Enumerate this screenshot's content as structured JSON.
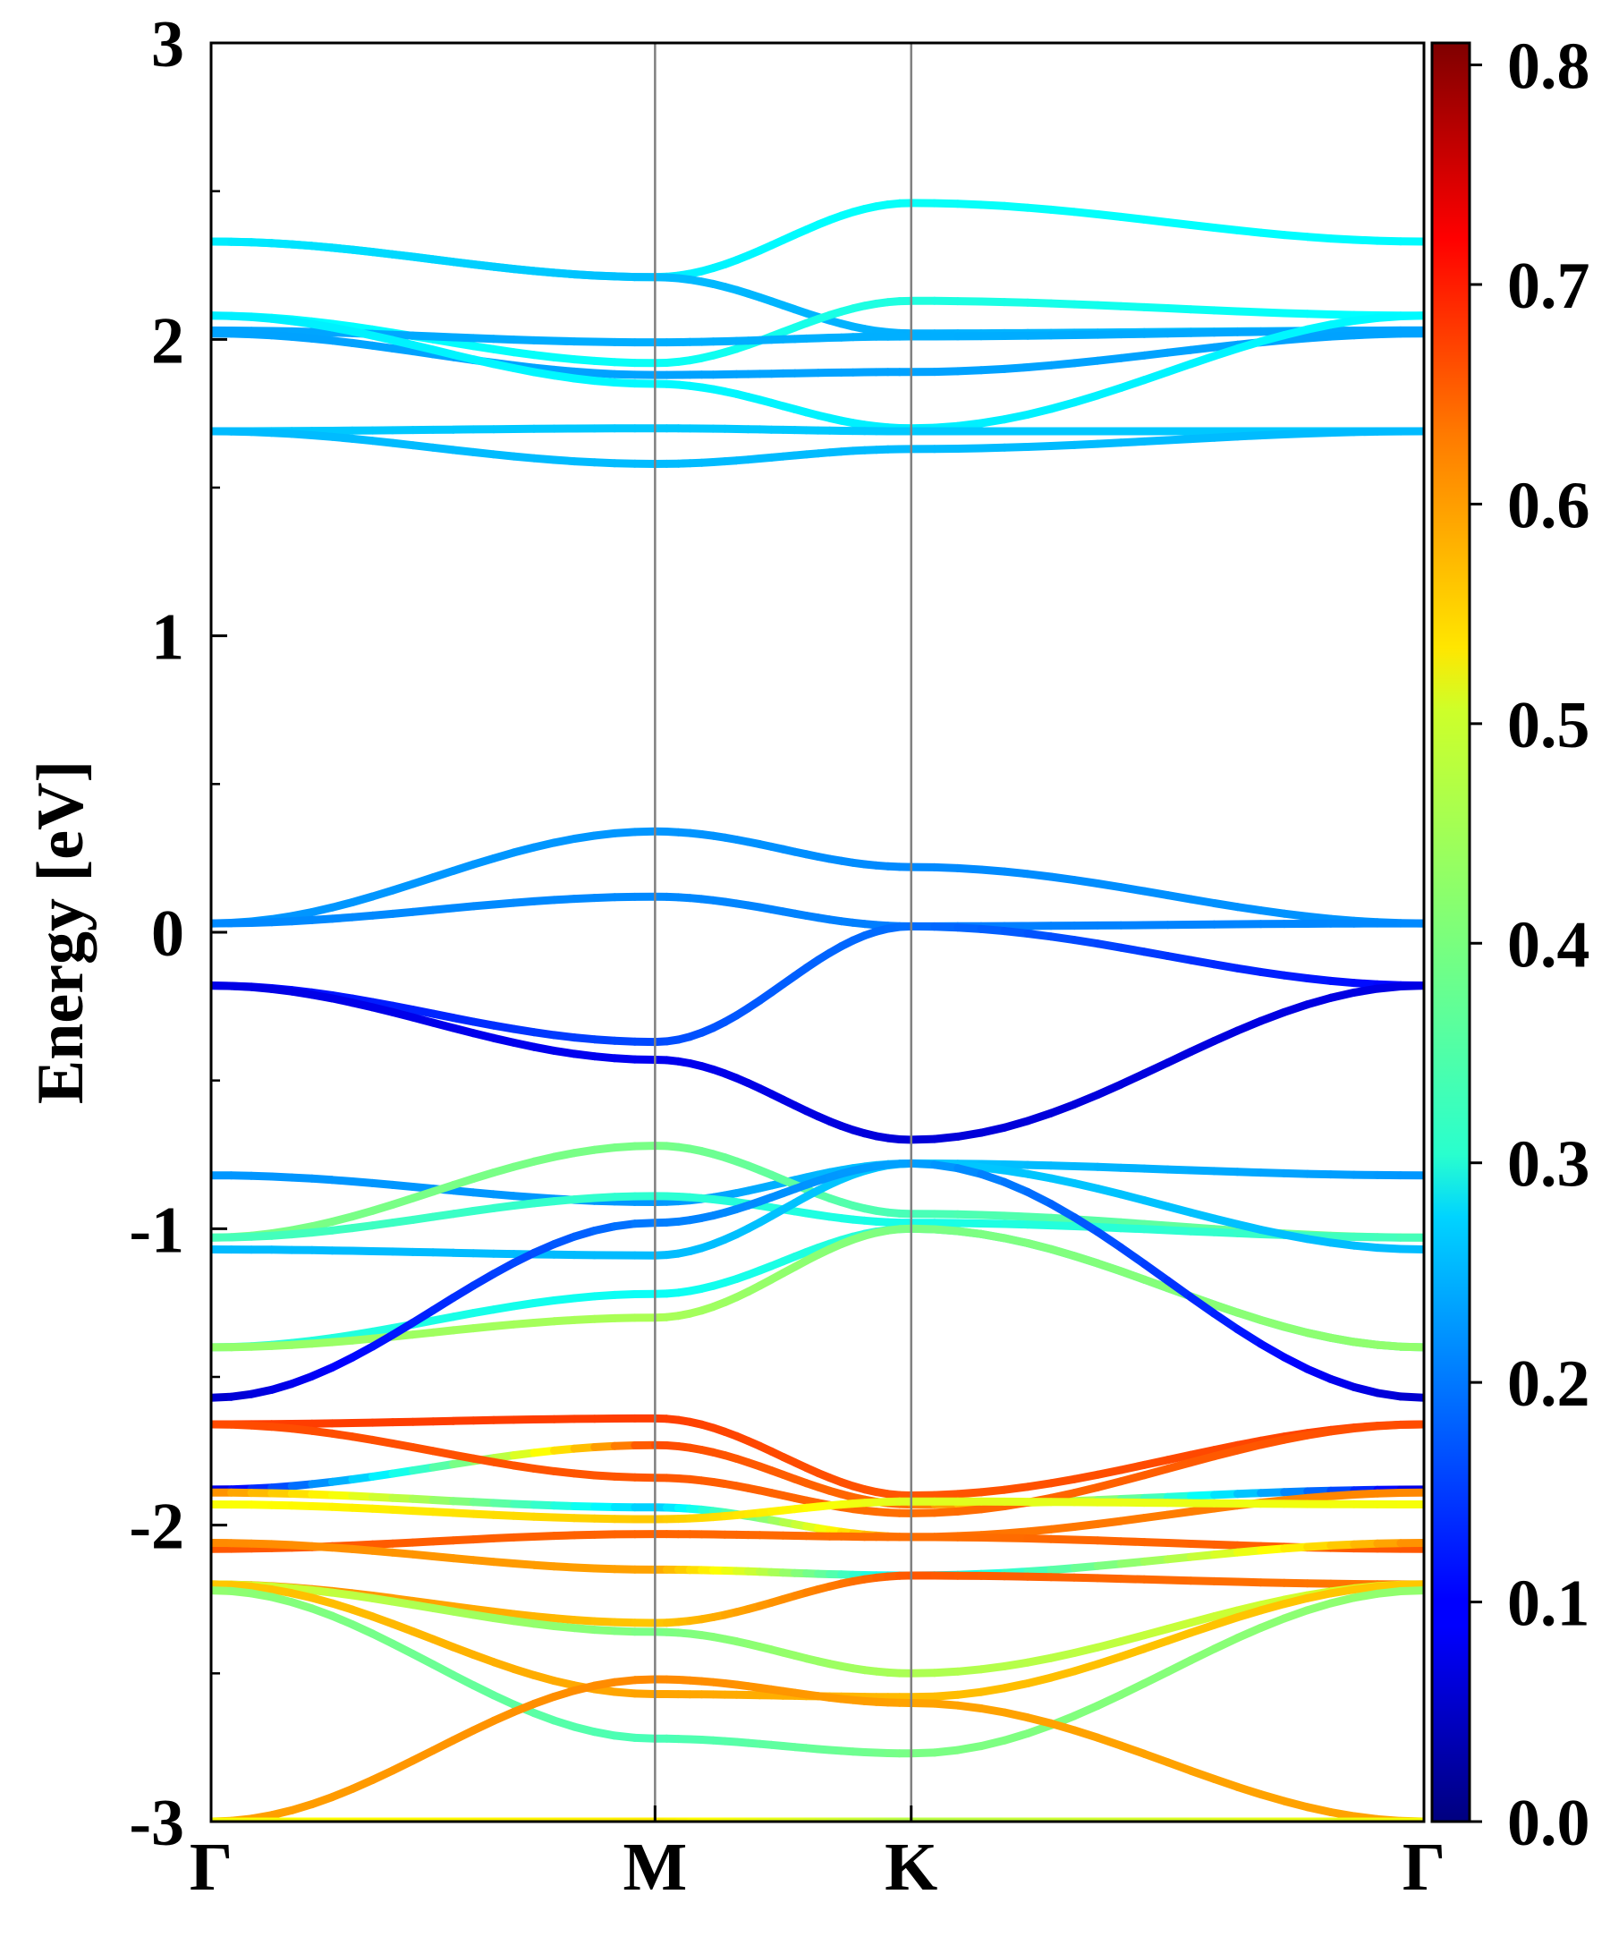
{
  "chart_data": {
    "type": "line",
    "title": "",
    "xlabel": "",
    "ylabel": "Energy [eV]",
    "ylim": [
      -3,
      3
    ],
    "yticks": [
      {
        "value": 3,
        "label": "3"
      },
      {
        "value": 2,
        "label": "2"
      },
      {
        "value": 1,
        "label": "1"
      },
      {
        "value": 0,
        "label": "0"
      },
      {
        "value": -1,
        "label": "-1"
      },
      {
        "value": -2,
        "label": "-2"
      },
      {
        "value": -3,
        "label": "-3"
      }
    ],
    "kpoints": [
      {
        "label": "Γ",
        "x": 0.0
      },
      {
        "label": "M",
        "x": 1.0
      },
      {
        "label": "K",
        "x": 1.577
      },
      {
        "label": "Γ",
        "x": 2.732
      }
    ],
    "grid": false,
    "colormap": "jet",
    "colorbar": {
      "range": [
        0.0,
        0.81
      ],
      "ticks": [
        {
          "value": 0.0,
          "label": "0.0"
        },
        {
          "value": 0.1,
          "label": "0.1"
        },
        {
          "value": 0.2,
          "label": "0.2"
        },
        {
          "value": 0.3,
          "label": "0.3"
        },
        {
          "value": 0.4,
          "label": "0.4"
        },
        {
          "value": 0.5,
          "label": "0.5"
        },
        {
          "value": 0.6,
          "label": "0.6"
        },
        {
          "value": 0.7,
          "label": "0.7"
        },
        {
          "value": 0.8,
          "label": "0.8"
        }
      ]
    },
    "bands": [
      {
        "energies": [
          2.33,
          2.21,
          2.46,
          2.33
        ],
        "weights": [
          0.3,
          0.29,
          0.31,
          0.3
        ]
      },
      {
        "energies": [
          2.33,
          2.21,
          2.02,
          2.03
        ],
        "weights": [
          0.29,
          0.25,
          0.24,
          0.26
        ]
      },
      {
        "energies": [
          2.08,
          1.92,
          2.13,
          2.08
        ],
        "weights": [
          0.3,
          0.31,
          0.33,
          0.3
        ]
      },
      {
        "energies": [
          2.03,
          1.99,
          2.01,
          2.03
        ],
        "weights": [
          0.23,
          0.24,
          0.24,
          0.23
        ]
      },
      {
        "energies": [
          2.02,
          1.88,
          1.89,
          2.02
        ],
        "weights": [
          0.23,
          0.23,
          0.23,
          0.23
        ]
      },
      {
        "energies": [
          2.08,
          1.85,
          1.7,
          2.08
        ],
        "weights": [
          0.29,
          0.3,
          0.29,
          0.3
        ]
      },
      {
        "energies": [
          1.69,
          1.7,
          1.69,
          1.69
        ],
        "weights": [
          0.26,
          0.26,
          0.26,
          0.26
        ]
      },
      {
        "energies": [
          1.69,
          1.58,
          1.63,
          1.69
        ],
        "weights": [
          0.25,
          0.25,
          0.25,
          0.25
        ]
      },
      {
        "energies": [
          0.03,
          0.34,
          0.22,
          0.03
        ],
        "weights": [
          0.22,
          0.22,
          0.21,
          0.22
        ]
      },
      {
        "energies": [
          0.03,
          0.12,
          0.02,
          0.03
        ],
        "weights": [
          0.21,
          0.21,
          0.2,
          0.21
        ]
      },
      {
        "energies": [
          -0.18,
          -0.37,
          0.02,
          -0.18
        ],
        "weights": [
          0.1,
          0.16,
          0.19,
          0.1
        ]
      },
      {
        "energies": [
          -0.18,
          -0.43,
          -0.7,
          -0.18
        ],
        "weights": [
          0.08,
          0.09,
          0.07,
          0.08
        ]
      },
      {
        "energies": [
          -0.82,
          -0.91,
          -0.78,
          -0.82
        ],
        "weights": [
          0.22,
          0.22,
          0.26,
          0.22
        ]
      },
      {
        "energies": [
          -1.03,
          -0.72,
          -0.95,
          -1.03
        ],
        "weights": [
          0.4,
          0.4,
          0.36,
          0.4
        ]
      },
      {
        "energies": [
          -1.03,
          -0.89,
          -0.98,
          -1.03
        ],
        "weights": [
          0.36,
          0.34,
          0.32,
          0.36
        ]
      },
      {
        "energies": [
          -1.07,
          -1.09,
          -0.78,
          -1.07
        ],
        "weights": [
          0.25,
          0.25,
          0.26,
          0.25
        ]
      },
      {
        "energies": [
          -1.4,
          -1.22,
          -1.0,
          -1.4
        ],
        "weights": [
          0.34,
          0.31,
          0.34,
          0.35
        ]
      },
      {
        "energies": [
          -1.4,
          -1.3,
          -1.0,
          -1.4
        ],
        "weights": [
          0.42,
          0.44,
          0.4,
          0.42
        ]
      },
      {
        "energies": [
          -1.57,
          -0.98,
          -0.78,
          -1.57
        ],
        "weights": [
          0.06,
          0.2,
          0.23,
          0.06
        ]
      },
      {
        "energies": [
          -1.66,
          -1.64,
          -1.9,
          -1.66
        ],
        "weights": [
          0.66,
          0.66,
          0.64,
          0.66
        ]
      },
      {
        "energies": [
          -1.88,
          -1.73,
          -1.93,
          -1.88
        ],
        "weights": [
          0.07,
          0.65,
          0.62,
          0.07
        ]
      },
      {
        "energies": [
          -1.66,
          -1.84,
          -1.96,
          -1.66
        ],
        "weights": [
          0.65,
          0.64,
          0.62,
          0.65
        ]
      },
      {
        "energies": [
          -1.89,
          -1.94,
          -2.04,
          -1.89
        ],
        "weights": [
          0.6,
          0.26,
          0.62,
          0.6
        ]
      },
      {
        "energies": [
          -1.93,
          -1.98,
          -1.92,
          -1.93
        ],
        "weights": [
          0.5,
          0.55,
          0.48,
          0.5
        ]
      },
      {
        "energies": [
          -2.08,
          -2.03,
          -2.04,
          -2.08
        ],
        "weights": [
          0.64,
          0.63,
          0.62,
          0.64
        ]
      },
      {
        "energies": [
          -2.06,
          -2.15,
          -2.17,
          -2.06
        ],
        "weights": [
          0.6,
          0.58,
          0.28,
          0.6
        ]
      },
      {
        "energies": [
          -2.2,
          -2.33,
          -2.17,
          -2.2
        ],
        "weights": [
          0.61,
          0.55,
          0.64,
          0.61
        ]
      },
      {
        "energies": [
          -2.2,
          -2.36,
          -2.5,
          -2.2
        ],
        "weights": [
          0.48,
          0.4,
          0.44,
          0.48
        ]
      },
      {
        "energies": [
          -2.2,
          -2.57,
          -2.58,
          -2.2
        ],
        "weights": [
          0.55,
          0.58,
          0.56,
          0.55
        ]
      },
      {
        "energies": [
          -2.22,
          -2.72,
          -2.77,
          -2.22
        ],
        "weights": [
          0.42,
          0.36,
          0.4,
          0.42
        ]
      },
      {
        "energies": [
          -3.0,
          -2.52,
          -2.6,
          -3.0
        ],
        "weights": [
          0.58,
          0.6,
          0.58,
          0.58
        ]
      },
      {
        "energies": [
          -3.0,
          -3.0,
          -3.0,
          -3.0
        ],
        "weights": [
          0.5,
          0.52,
          0.45,
          0.5
        ]
      }
    ]
  }
}
